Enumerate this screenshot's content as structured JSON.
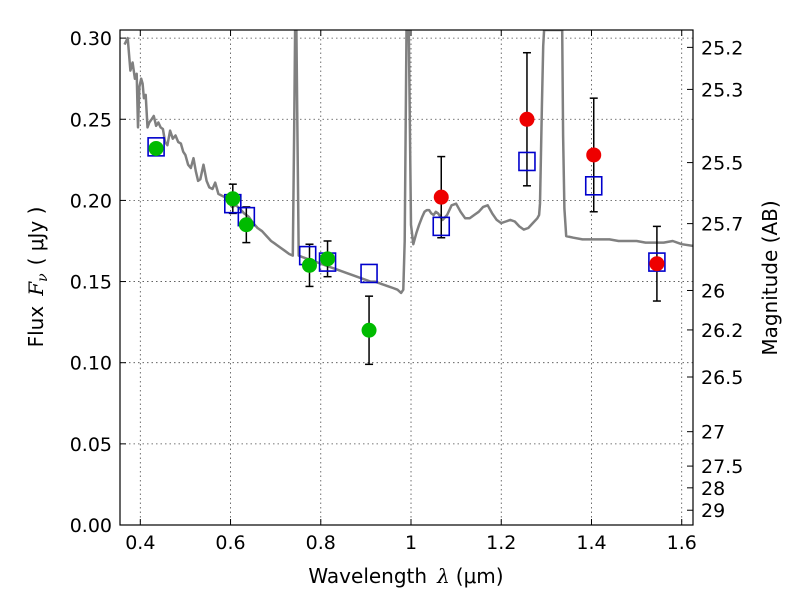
{
  "chart_data": {
    "type": "scatter",
    "xlabel": "Wavelength",
    "xlabel_symbol": "λ",
    "xlabel_unit": "(μm)",
    "ylabel": "Flux",
    "ylabel_symbol": "F",
    "ylabel_subscript": "ν",
    "ylabel_unit": "( μJy )",
    "y2label": "Magnitude (AB)",
    "xlim": [
      0.355,
      1.625
    ],
    "ylim": [
      0.0,
      0.305
    ],
    "grid": true,
    "x_ticks": [
      {
        "value": 0.4,
        "label": "0.4"
      },
      {
        "value": 0.6,
        "label": "0.6"
      },
      {
        "value": 0.8,
        "label": "0.8"
      },
      {
        "value": 1.0,
        "label": "1"
      },
      {
        "value": 1.2,
        "label": "1.2"
      },
      {
        "value": 1.4,
        "label": "1.4"
      },
      {
        "value": 1.6,
        "label": "1.6"
      }
    ],
    "y_ticks": [
      {
        "value": 0.0,
        "label": "0.00"
      },
      {
        "value": 0.05,
        "label": "0.05"
      },
      {
        "value": 0.1,
        "label": "0.10"
      },
      {
        "value": 0.15,
        "label": "0.15"
      },
      {
        "value": 0.2,
        "label": "0.20"
      },
      {
        "value": 0.25,
        "label": "0.25"
      },
      {
        "value": 0.3,
        "label": "0.30"
      }
    ],
    "y2_ticks": [
      {
        "label": "25.2",
        "flux": 0.2943
      },
      {
        "label": "25.3",
        "flux": 0.2684
      },
      {
        "label": "25.5",
        "flux": 0.2233
      },
      {
        "label": "25.7",
        "flux": 0.1857
      },
      {
        "label": "26",
        "flux": 0.1445
      },
      {
        "label": "26.2",
        "flux": 0.1202
      },
      {
        "label": "26.5",
        "flux": 0.0912
      },
      {
        "label": "27",
        "flux": 0.0575
      },
      {
        "label": "27.5",
        "flux": 0.0363
      },
      {
        "label": "28",
        "flux": 0.0229
      },
      {
        "label": "29",
        "flux": 0.0091
      }
    ],
    "series": [
      {
        "kind": "line",
        "color": "#808080",
        "points": [
          [
            0.365,
            0.296
          ],
          [
            0.372,
            0.3
          ],
          [
            0.378,
            0.28
          ],
          [
            0.383,
            0.285
          ],
          [
            0.388,
            0.275
          ],
          [
            0.392,
            0.278
          ],
          [
            0.395,
            0.245
          ],
          [
            0.398,
            0.27
          ],
          [
            0.402,
            0.275
          ],
          [
            0.405,
            0.272
          ],
          [
            0.408,
            0.263
          ],
          [
            0.412,
            0.265
          ],
          [
            0.416,
            0.245
          ],
          [
            0.42,
            0.248
          ],
          [
            0.425,
            0.25
          ],
          [
            0.43,
            0.252
          ],
          [
            0.435,
            0.246
          ],
          [
            0.44,
            0.248
          ],
          [
            0.445,
            0.245
          ],
          [
            0.45,
            0.244
          ],
          [
            0.455,
            0.236
          ],
          [
            0.46,
            0.234
          ],
          [
            0.466,
            0.243
          ],
          [
            0.472,
            0.238
          ],
          [
            0.478,
            0.24
          ],
          [
            0.484,
            0.236
          ],
          [
            0.49,
            0.235
          ],
          [
            0.495,
            0.23
          ],
          [
            0.5,
            0.228
          ],
          [
            0.506,
            0.222
          ],
          [
            0.512,
            0.22
          ],
          [
            0.518,
            0.226
          ],
          [
            0.523,
            0.218
          ],
          [
            0.528,
            0.212
          ],
          [
            0.533,
            0.213
          ],
          [
            0.54,
            0.222
          ],
          [
            0.547,
            0.212
          ],
          [
            0.553,
            0.208
          ],
          [
            0.56,
            0.207
          ],
          [
            0.566,
            0.211
          ],
          [
            0.573,
            0.204
          ],
          [
            0.58,
            0.203
          ],
          [
            0.588,
            0.202
          ],
          [
            0.596,
            0.199
          ],
          [
            0.603,
            0.196
          ],
          [
            0.612,
            0.197
          ],
          [
            0.62,
            0.195
          ],
          [
            0.63,
            0.192
          ],
          [
            0.64,
            0.19
          ],
          [
            0.65,
            0.186
          ],
          [
            0.66,
            0.183
          ],
          [
            0.67,
            0.181
          ],
          [
            0.68,
            0.178
          ],
          [
            0.69,
            0.175
          ],
          [
            0.7,
            0.173
          ],
          [
            0.71,
            0.171
          ],
          [
            0.72,
            0.169
          ],
          [
            0.73,
            0.167
          ],
          [
            0.738,
            0.166
          ],
          [
            0.741,
            0.245
          ],
          [
            0.743,
            0.305
          ],
          [
            0.746,
            0.305
          ],
          [
            0.748,
            0.25
          ],
          [
            0.751,
            0.166
          ],
          [
            0.76,
            0.165
          ],
          [
            0.77,
            0.164
          ],
          [
            0.78,
            0.163
          ],
          [
            0.79,
            0.162
          ],
          [
            0.8,
            0.161
          ],
          [
            0.81,
            0.16
          ],
          [
            0.82,
            0.159
          ],
          [
            0.83,
            0.158
          ],
          [
            0.84,
            0.157
          ],
          [
            0.85,
            0.156
          ],
          [
            0.86,
            0.155
          ],
          [
            0.87,
            0.154
          ],
          [
            0.88,
            0.153
          ],
          [
            0.89,
            0.152
          ],
          [
            0.9,
            0.151
          ],
          [
            0.91,
            0.15
          ],
          [
            0.92,
            0.15
          ],
          [
            0.93,
            0.149
          ],
          [
            0.94,
            0.148
          ],
          [
            0.95,
            0.147
          ],
          [
            0.96,
            0.146
          ],
          [
            0.97,
            0.145
          ],
          [
            0.978,
            0.143
          ],
          [
            0.983,
            0.145
          ],
          [
            0.986,
            0.175
          ],
          [
            0.988,
            0.24
          ],
          [
            0.99,
            0.305
          ],
          [
            0.995,
            0.305
          ],
          [
            0.997,
            0.255
          ],
          [
            1.0,
            0.185
          ],
          [
            1.005,
            0.173
          ],
          [
            1.012,
            0.18
          ],
          [
            1.018,
            0.185
          ],
          [
            1.025,
            0.19
          ],
          [
            1.03,
            0.193
          ],
          [
            1.035,
            0.194
          ],
          [
            1.04,
            0.194
          ],
          [
            1.045,
            0.192
          ],
          [
            1.05,
            0.191
          ],
          [
            1.055,
            0.193
          ],
          [
            1.06,
            0.192
          ],
          [
            1.065,
            0.19
          ],
          [
            1.07,
            0.188
          ],
          [
            1.08,
            0.191
          ],
          [
            1.09,
            0.197
          ],
          [
            1.1,
            0.198
          ],
          [
            1.11,
            0.193
          ],
          [
            1.12,
            0.189
          ],
          [
            1.13,
            0.189
          ],
          [
            1.14,
            0.191
          ],
          [
            1.15,
            0.193
          ],
          [
            1.16,
            0.196
          ],
          [
            1.17,
            0.197
          ],
          [
            1.18,
            0.192
          ],
          [
            1.19,
            0.188
          ],
          [
            1.2,
            0.186
          ],
          [
            1.21,
            0.187
          ],
          [
            1.22,
            0.188
          ],
          [
            1.23,
            0.187
          ],
          [
            1.24,
            0.184
          ],
          [
            1.25,
            0.182
          ],
          [
            1.26,
            0.183
          ],
          [
            1.27,
            0.186
          ],
          [
            1.28,
            0.189
          ],
          [
            1.284,
            0.191
          ],
          [
            1.286,
            0.198
          ],
          [
            1.29,
            0.258
          ],
          [
            1.293,
            0.295
          ],
          [
            1.295,
            0.305
          ],
          [
            1.335,
            0.305
          ],
          [
            1.337,
            0.24
          ],
          [
            1.34,
            0.195
          ],
          [
            1.344,
            0.178
          ],
          [
            1.36,
            0.177
          ],
          [
            1.38,
            0.176
          ],
          [
            1.4,
            0.176
          ],
          [
            1.42,
            0.176
          ],
          [
            1.44,
            0.176
          ],
          [
            1.46,
            0.175
          ],
          [
            1.48,
            0.175
          ],
          [
            1.5,
            0.175
          ],
          [
            1.52,
            0.174
          ],
          [
            1.54,
            0.174
          ],
          [
            1.56,
            0.174
          ],
          [
            1.58,
            0.175
          ],
          [
            1.6,
            0.173
          ],
          [
            1.625,
            0.172
          ]
        ]
      },
      {
        "kind": "open-square",
        "color": "#0000cc",
        "points": [
          [
            0.435,
            0.233
          ],
          [
            0.605,
            0.198
          ],
          [
            0.635,
            0.19
          ],
          [
            0.771,
            0.166
          ],
          [
            0.815,
            0.162
          ],
          [
            0.907,
            0.155
          ],
          [
            1.067,
            0.184
          ],
          [
            1.257,
            0.224
          ],
          [
            1.405,
            0.209
          ],
          [
            1.545,
            0.162
          ]
        ]
      },
      {
        "kind": "filled-circle",
        "color": "#00bb00",
        "points": [
          {
            "x": 0.435,
            "y": 0.232
          },
          {
            "x": 0.605,
            "y": 0.201,
            "err": 0.009
          },
          {
            "x": 0.635,
            "y": 0.185,
            "err": 0.011
          },
          {
            "x": 0.775,
            "y": 0.16,
            "err": 0.013
          },
          {
            "x": 0.815,
            "y": 0.164,
            "err": 0.011
          },
          {
            "x": 0.907,
            "y": 0.12,
            "err": 0.021
          }
        ]
      },
      {
        "kind": "filled-circle",
        "color": "#ee0000",
        "points": [
          {
            "x": 1.067,
            "y": 0.202,
            "err": 0.025
          },
          {
            "x": 1.257,
            "y": 0.25,
            "err": 0.041
          },
          {
            "x": 1.405,
            "y": 0.228,
            "err": 0.035
          },
          {
            "x": 1.545,
            "y": 0.161,
            "err": 0.023
          }
        ]
      }
    ]
  }
}
